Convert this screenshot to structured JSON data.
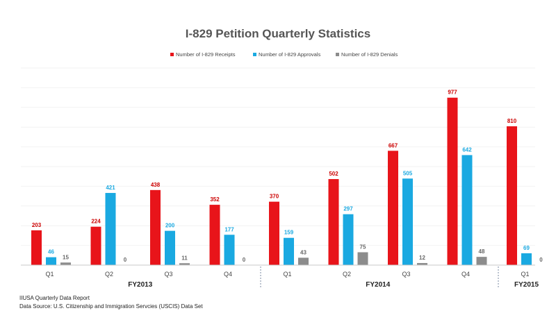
{
  "chart_data": {
    "type": "bar",
    "title": "I-829 Petition Quarterly Statistics",
    "categories": [
      "Q1",
      "Q2",
      "Q3",
      "Q4",
      "Q1",
      "Q2",
      "Q3",
      "Q4",
      "Q1"
    ],
    "groups": [
      {
        "label": "FY2013",
        "count": 4
      },
      {
        "label": "FY2014",
        "count": 4
      },
      {
        "label": "FY2015",
        "count": 1
      }
    ],
    "series": [
      {
        "name": "Number of I-829 Receipts",
        "color": "#e8141a",
        "values": [
          203,
          224,
          438,
          352,
          370,
          502,
          667,
          977,
          810
        ]
      },
      {
        "name": "Number of I-829 Approvals",
        "color": "#1aa9e1",
        "values": [
          46,
          421,
          200,
          177,
          159,
          297,
          505,
          642,
          69
        ]
      },
      {
        "name": "Number of I-829 Denials",
        "color": "#8c8c8c",
        "values": [
          15,
          0,
          11,
          0,
          43,
          75,
          12,
          48,
          0
        ]
      }
    ],
    "ylim": [
      0,
      1000
    ],
    "legend_position": "top-center",
    "grid": true
  },
  "footer": {
    "line1": "IIUSA Quarterly Data Report",
    "line2": "Data Source: U.S. Citizenship and Immigration Servcies (USCIS) Data Set"
  }
}
